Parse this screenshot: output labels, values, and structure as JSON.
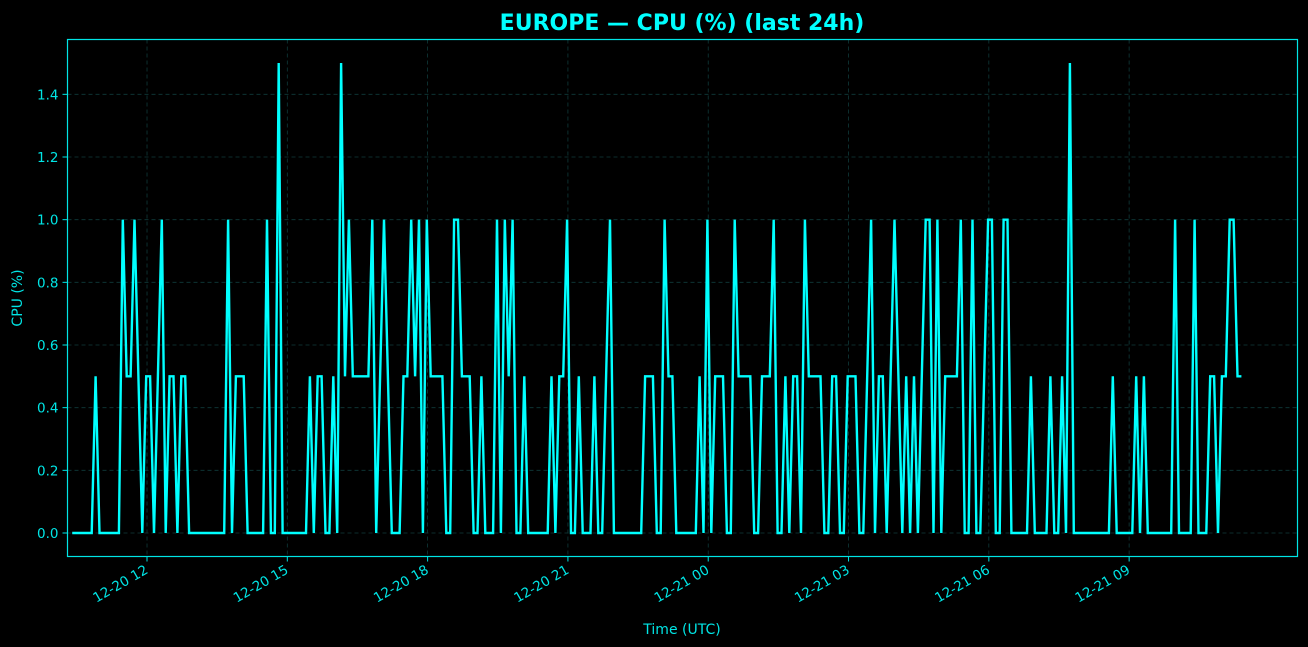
{
  "theme": {
    "background": "#000000",
    "accent": "#00ffff",
    "text": "#00e5e5",
    "grid": "#0f3a3a"
  },
  "chart_data": {
    "type": "line",
    "title": "EUROPE — CPU (%) (last 24h)",
    "xlabel": "Time (UTC)",
    "ylabel": "CPU (%)",
    "ylim": [
      -0.075,
      1.575
    ],
    "yticks": [
      0.0,
      0.2,
      0.4,
      0.6,
      0.8,
      1.0,
      1.2,
      1.4
    ],
    "ytick_labels": [
      "0.0",
      "0.2",
      "0.4",
      "0.6",
      "0.8",
      "1.0",
      "1.2",
      "1.4"
    ],
    "xlim_hours": [
      -1.7,
      24.6
    ],
    "xticks_hours": [
      0,
      3,
      6,
      9,
      12,
      15,
      18,
      21
    ],
    "xtick_labels": [
      "12-20 12",
      "12-20 15",
      "12-20 18",
      "12-20 21",
      "12-21 00",
      "12-21 03",
      "12-21 06",
      "12-21 09"
    ],
    "x_start_hours": -1.6,
    "x_step_minutes": 5,
    "grid": true,
    "legend": null,
    "series": [
      {
        "name": "CPU (%)",
        "color": "#00ffff",
        "values": [
          0,
          0,
          0,
          0,
          0,
          0,
          0.5,
          0,
          0,
          0,
          0,
          0,
          0,
          1,
          0.5,
          0.5,
          1,
          0.5,
          0,
          0.5,
          0.5,
          0,
          0.5,
          1,
          0,
          0.5,
          0.5,
          0,
          0.5,
          0.5,
          0,
          0,
          0,
          0,
          0,
          0,
          0,
          0,
          0,
          0,
          1,
          0,
          0.5,
          0.5,
          0.5,
          0,
          0,
          0,
          0,
          0,
          1,
          0,
          0,
          1.5,
          0,
          0,
          0,
          0,
          0,
          0,
          0,
          0.5,
          0,
          0.5,
          0.5,
          0,
          0,
          0.5,
          0,
          1.5,
          0.5,
          1,
          0.5,
          0.5,
          0.5,
          0.5,
          0.5,
          1,
          0,
          0.5,
          1,
          0.5,
          0,
          0,
          0,
          0.5,
          0.5,
          1,
          0.5,
          1,
          0,
          1,
          0.5,
          0.5,
          0.5,
          0.5,
          0,
          0,
          1,
          1,
          0.5,
          0.5,
          0.5,
          0,
          0,
          0.5,
          0,
          0,
          0,
          1,
          0,
          1,
          0.5,
          1,
          0,
          0,
          0.5,
          0,
          0,
          0,
          0,
          0,
          0,
          0.5,
          0,
          0.5,
          0.5,
          1,
          0,
          0,
          0.5,
          0,
          0,
          0,
          0.5,
          0,
          0,
          0.5,
          1,
          0,
          0,
          0,
          0,
          0,
          0,
          0,
          0,
          0.5,
          0.5,
          0.5,
          0,
          0,
          1,
          0.5,
          0.5,
          0,
          0,
          0,
          0,
          0,
          0,
          0.5,
          0,
          1,
          0,
          0.5,
          0.5,
          0.5,
          0,
          0,
          1,
          0.5,
          0.5,
          0.5,
          0.5,
          0,
          0,
          0.5,
          0.5,
          0.5,
          1,
          0,
          0,
          0.5,
          0,
          0.5,
          0.5,
          0,
          1,
          0.5,
          0.5,
          0.5,
          0.5,
          0,
          0,
          0.5,
          0.5,
          0,
          0,
          0.5,
          0.5,
          0.5,
          0,
          0,
          0.5,
          1,
          0,
          0.5,
          0.5,
          0,
          0.5,
          1,
          0.5,
          0,
          0.5,
          0,
          0.5,
          0,
          0.5,
          1,
          1,
          0,
          1,
          0,
          0.5,
          0.5,
          0.5,
          0.5,
          1,
          0,
          0,
          1,
          0,
          0,
          0.5,
          1,
          1,
          0,
          0,
          1,
          1,
          0,
          0,
          0,
          0,
          0,
          0.5,
          0,
          0,
          0,
          0,
          0.5,
          0,
          0,
          0.5,
          0,
          1.5,
          0,
          0,
          0,
          0,
          0,
          0,
          0,
          0,
          0,
          0,
          0.5,
          0,
          0,
          0,
          0,
          0,
          0.5,
          0,
          0.5,
          0,
          0,
          0,
          0,
          0,
          0,
          0,
          1,
          0,
          0,
          0,
          0,
          1,
          0,
          0,
          0,
          0.5,
          0.5,
          0,
          0.5,
          0.5,
          1,
          1,
          0.5,
          0.5
        ]
      }
    ]
  }
}
